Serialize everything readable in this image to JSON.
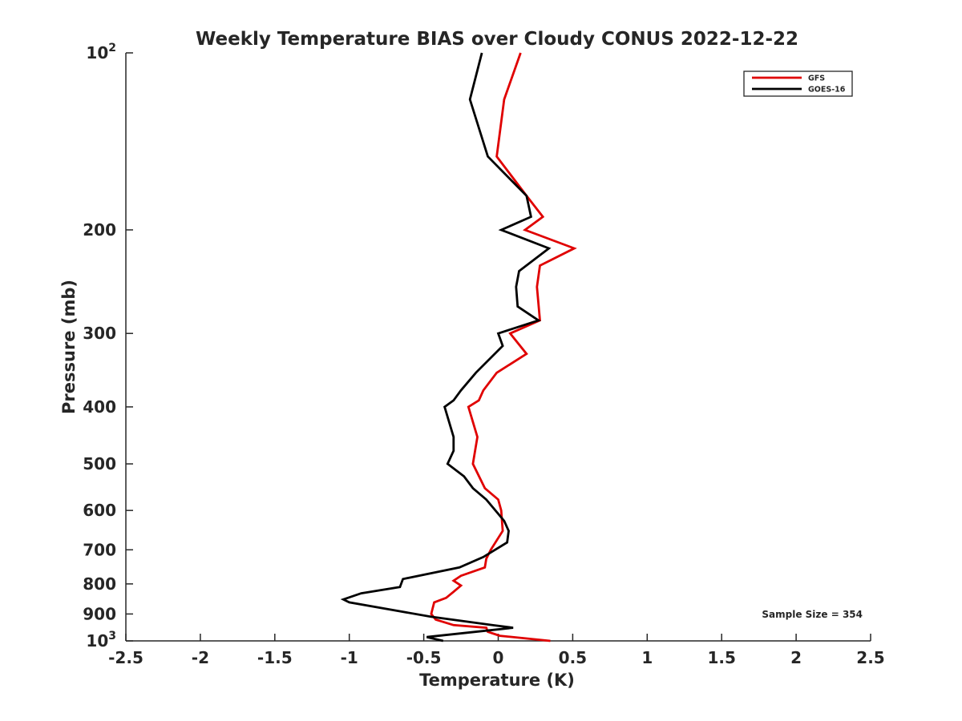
{
  "chart_data": {
    "type": "line",
    "title": "Weekly Temperature BIAS over Cloudy CONUS 2022-12-22",
    "xlabel": "Temperature (K)",
    "ylabel": "Pressure (mb)",
    "xlim": [
      -2.5,
      2.5
    ],
    "ylim": [
      100,
      1000
    ],
    "y_scale": "log",
    "y_reversed": true,
    "grid": false,
    "legend_position": "top-right",
    "x_ticks": [
      {
        "value": -2.5,
        "label": "-2.5"
      },
      {
        "value": -2,
        "label": "-2"
      },
      {
        "value": -1.5,
        "label": "-1.5"
      },
      {
        "value": -1,
        "label": "-1"
      },
      {
        "value": -0.5,
        "label": "-0.5"
      },
      {
        "value": 0,
        "label": "0"
      },
      {
        "value": 0.5,
        "label": "0.5"
      },
      {
        "value": 1,
        "label": "1"
      },
      {
        "value": 1.5,
        "label": "1.5"
      },
      {
        "value": 2,
        "label": "2"
      },
      {
        "value": 2.5,
        "label": "2.5"
      }
    ],
    "y_ticks": [
      {
        "value": 100,
        "label": "10",
        "sup": "2"
      },
      {
        "value": 200,
        "label": "200",
        "sup": ""
      },
      {
        "value": 300,
        "label": "300",
        "sup": ""
      },
      {
        "value": 400,
        "label": "400",
        "sup": ""
      },
      {
        "value": 500,
        "label": "500",
        "sup": ""
      },
      {
        "value": 600,
        "label": "600",
        "sup": ""
      },
      {
        "value": 700,
        "label": "700",
        "sup": ""
      },
      {
        "value": 800,
        "label": "800",
        "sup": ""
      },
      {
        "value": 900,
        "label": "900",
        "sup": ""
      },
      {
        "value": 1000,
        "label": "10",
        "sup": "3"
      }
    ],
    "annotation": "Sample Size = 354",
    "series": [
      {
        "name": "GFS",
        "color": "#e00000",
        "points": [
          {
            "x": 0.15,
            "y": 100
          },
          {
            "x": 0.04,
            "y": 120
          },
          {
            "x": -0.01,
            "y": 150
          },
          {
            "x": 0.19,
            "y": 175
          },
          {
            "x": 0.3,
            "y": 190
          },
          {
            "x": 0.18,
            "y": 200
          },
          {
            "x": 0.51,
            "y": 215
          },
          {
            "x": 0.28,
            "y": 230
          },
          {
            "x": 0.26,
            "y": 250
          },
          {
            "x": 0.28,
            "y": 285
          },
          {
            "x": 0.08,
            "y": 300
          },
          {
            "x": 0.19,
            "y": 325
          },
          {
            "x": -0.01,
            "y": 350
          },
          {
            "x": -0.1,
            "y": 375
          },
          {
            "x": -0.13,
            "y": 390
          },
          {
            "x": -0.2,
            "y": 400
          },
          {
            "x": -0.14,
            "y": 450
          },
          {
            "x": -0.17,
            "y": 500
          },
          {
            "x": -0.09,
            "y": 550
          },
          {
            "x": 0,
            "y": 575
          },
          {
            "x": 0.02,
            "y": 600
          },
          {
            "x": 0.03,
            "y": 650
          },
          {
            "x": -0.05,
            "y": 700
          },
          {
            "x": -0.08,
            "y": 725
          },
          {
            "x": -0.09,
            "y": 750
          },
          {
            "x": -0.25,
            "y": 775
          },
          {
            "x": -0.3,
            "y": 790
          },
          {
            "x": -0.25,
            "y": 805
          },
          {
            "x": -0.3,
            "y": 825
          },
          {
            "x": -0.35,
            "y": 845
          },
          {
            "x": -0.43,
            "y": 860
          },
          {
            "x": -0.45,
            "y": 900
          },
          {
            "x": -0.42,
            "y": 920
          },
          {
            "x": -0.3,
            "y": 940
          },
          {
            "x": -0.08,
            "y": 950
          },
          {
            "x": -0.07,
            "y": 965
          },
          {
            "x": 0.01,
            "y": 980
          },
          {
            "x": 0.35,
            "y": 1000
          }
        ]
      },
      {
        "name": "GOES-16",
        "color": "#000000",
        "points": [
          {
            "x": -0.11,
            "y": 100
          },
          {
            "x": -0.19,
            "y": 120
          },
          {
            "x": -0.07,
            "y": 150
          },
          {
            "x": 0.19,
            "y": 175
          },
          {
            "x": 0.22,
            "y": 190
          },
          {
            "x": 0.02,
            "y": 200
          },
          {
            "x": 0.34,
            "y": 215
          },
          {
            "x": 0.14,
            "y": 235
          },
          {
            "x": 0.12,
            "y": 250
          },
          {
            "x": 0.13,
            "y": 270
          },
          {
            "x": 0.27,
            "y": 285
          },
          {
            "x": 0,
            "y": 300
          },
          {
            "x": 0.03,
            "y": 315
          },
          {
            "x": -0.15,
            "y": 350
          },
          {
            "x": -0.25,
            "y": 375
          },
          {
            "x": -0.3,
            "y": 390
          },
          {
            "x": -0.36,
            "y": 400
          },
          {
            "x": -0.3,
            "y": 450
          },
          {
            "x": -0.3,
            "y": 475
          },
          {
            "x": -0.34,
            "y": 500
          },
          {
            "x": -0.23,
            "y": 525
          },
          {
            "x": -0.17,
            "y": 550
          },
          {
            "x": -0.08,
            "y": 575
          },
          {
            "x": 0.04,
            "y": 625
          },
          {
            "x": 0.07,
            "y": 650
          },
          {
            "x": 0.06,
            "y": 680
          },
          {
            "x": -0.1,
            "y": 720
          },
          {
            "x": -0.26,
            "y": 750
          },
          {
            "x": -0.64,
            "y": 785
          },
          {
            "x": -0.66,
            "y": 810
          },
          {
            "x": -0.92,
            "y": 830
          },
          {
            "x": -1.04,
            "y": 850
          },
          {
            "x": -1.0,
            "y": 860
          },
          {
            "x": -0.45,
            "y": 910
          },
          {
            "x": -0.04,
            "y": 940
          },
          {
            "x": 0.1,
            "y": 950
          },
          {
            "x": -0.48,
            "y": 985
          },
          {
            "x": -0.37,
            "y": 1000
          }
        ]
      }
    ]
  }
}
